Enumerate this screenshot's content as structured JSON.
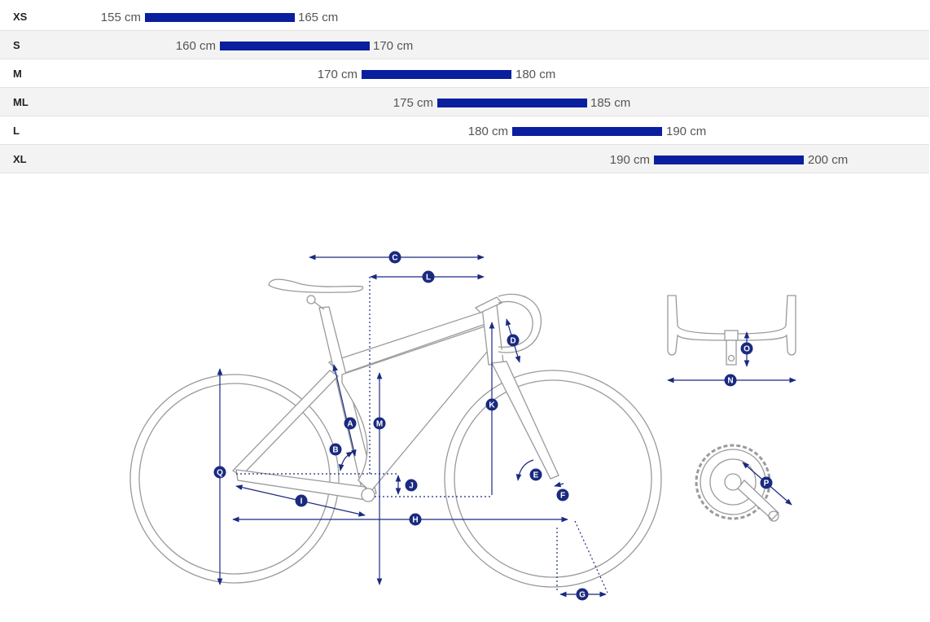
{
  "size_chart": {
    "rows": [
      {
        "size": "XS",
        "min": "155 cm",
        "max": "165 cm"
      },
      {
        "size": "S",
        "min": "160 cm",
        "max": "170 cm"
      },
      {
        "size": "M",
        "min": "170 cm",
        "max": "180 cm"
      },
      {
        "size": "ML",
        "min": "175 cm",
        "max": "185 cm"
      },
      {
        "size": "L",
        "min": "180 cm",
        "max": "190 cm"
      },
      {
        "size": "XL",
        "min": "190 cm",
        "max": "200 cm"
      }
    ],
    "heights_cm": [
      [
        155,
        165
      ],
      [
        160,
        170
      ],
      [
        170,
        180
      ],
      [
        175,
        185
      ],
      [
        180,
        190
      ],
      [
        190,
        200
      ]
    ]
  },
  "colors": {
    "bar": "#0a1f9e",
    "dimension": "#1a2a80",
    "frame_line": "#9a9a9a"
  },
  "geometry_labels": {
    "A": "A",
    "B": "B",
    "C": "C",
    "D": "D",
    "E": "E",
    "F": "F",
    "G": "G",
    "H": "H",
    "I": "I",
    "J": "J",
    "K": "K",
    "L": "L",
    "M": "M",
    "N": "N",
    "O": "O",
    "P": "P",
    "Q": "Q"
  }
}
